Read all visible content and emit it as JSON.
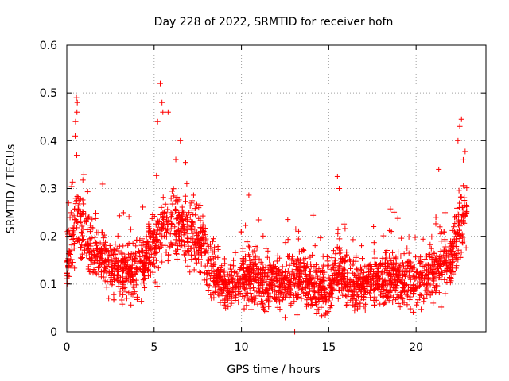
{
  "chart_data": {
    "type": "scatter",
    "title": "Day 228 of 2022, SRMTID for receiver hofn",
    "xlabel": "GPS time / hours",
    "ylabel": "SRMTID / TECUs",
    "xlim": [
      0,
      24
    ],
    "ylim": [
      0,
      0.6
    ],
    "x_ticks": [
      0,
      5,
      10,
      15,
      20
    ],
    "x_tick_labels": [
      "0",
      "5",
      "10",
      "15",
      "20"
    ],
    "y_ticks": [
      0,
      0.1,
      0.2,
      0.3,
      0.4,
      0.5,
      0.6
    ],
    "y_tick_labels": [
      "0",
      "0.1",
      "0.2",
      "0.3",
      "0.4",
      "0.5",
      "0.6"
    ],
    "grid": true,
    "marker": "plus",
    "color": "#ff0000",
    "outlier_points": [
      {
        "x": 0.55,
        "y": 0.49
      },
      {
        "x": 0.6,
        "y": 0.48
      },
      {
        "x": 0.58,
        "y": 0.46
      },
      {
        "x": 0.5,
        "y": 0.44
      },
      {
        "x": 0.48,
        "y": 0.41
      },
      {
        "x": 5.35,
        "y": 0.52
      },
      {
        "x": 5.45,
        "y": 0.48
      },
      {
        "x": 5.5,
        "y": 0.46
      },
      {
        "x": 5.2,
        "y": 0.44
      },
      {
        "x": 5.8,
        "y": 0.46
      },
      {
        "x": 6.5,
        "y": 0.4
      },
      {
        "x": 22.6,
        "y": 0.445
      },
      {
        "x": 22.5,
        "y": 0.43
      },
      {
        "x": 22.4,
        "y": 0.4
      },
      {
        "x": 22.7,
        "y": 0.36
      },
      {
        "x": 15.5,
        "y": 0.325
      },
      {
        "x": 15.6,
        "y": 0.3
      },
      {
        "x": 21.3,
        "y": 0.34
      },
      {
        "x": 12.5,
        "y": 0.03
      },
      {
        "x": 14.8,
        "y": 0.035
      },
      {
        "x": 13.05,
        "y": 0.0
      }
    ],
    "envelope": [
      {
        "x": 0.0,
        "y": 0.15
      },
      {
        "x": 0.3,
        "y": 0.2
      },
      {
        "x": 0.6,
        "y": 0.23
      },
      {
        "x": 1.0,
        "y": 0.2
      },
      {
        "x": 1.5,
        "y": 0.18
      },
      {
        "x": 2.0,
        "y": 0.16
      },
      {
        "x": 2.5,
        "y": 0.14
      },
      {
        "x": 3.0,
        "y": 0.12
      },
      {
        "x": 3.5,
        "y": 0.12
      },
      {
        "x": 4.0,
        "y": 0.13
      },
      {
        "x": 4.5,
        "y": 0.15
      },
      {
        "x": 5.0,
        "y": 0.18
      },
      {
        "x": 5.5,
        "y": 0.22
      },
      {
        "x": 6.0,
        "y": 0.23
      },
      {
        "x": 6.5,
        "y": 0.22
      },
      {
        "x": 7.0,
        "y": 0.21
      },
      {
        "x": 7.5,
        "y": 0.19
      },
      {
        "x": 8.0,
        "y": 0.16
      },
      {
        "x": 8.5,
        "y": 0.12
      },
      {
        "x": 9.0,
        "y": 0.1
      },
      {
        "x": 9.5,
        "y": 0.09
      },
      {
        "x": 10.0,
        "y": 0.11
      },
      {
        "x": 10.5,
        "y": 0.12
      },
      {
        "x": 11.0,
        "y": 0.11
      },
      {
        "x": 11.5,
        "y": 0.1
      },
      {
        "x": 12.0,
        "y": 0.1
      },
      {
        "x": 12.5,
        "y": 0.1
      },
      {
        "x": 13.0,
        "y": 0.11
      },
      {
        "x": 13.5,
        "y": 0.12
      },
      {
        "x": 14.0,
        "y": 0.1
      },
      {
        "x": 14.5,
        "y": 0.09
      },
      {
        "x": 15.0,
        "y": 0.09
      },
      {
        "x": 15.5,
        "y": 0.14
      },
      {
        "x": 16.0,
        "y": 0.1
      },
      {
        "x": 16.5,
        "y": 0.1
      },
      {
        "x": 17.0,
        "y": 0.1
      },
      {
        "x": 17.5,
        "y": 0.11
      },
      {
        "x": 18.0,
        "y": 0.1
      },
      {
        "x": 18.5,
        "y": 0.11
      },
      {
        "x": 19.0,
        "y": 0.11
      },
      {
        "x": 19.5,
        "y": 0.11
      },
      {
        "x": 20.0,
        "y": 0.11
      },
      {
        "x": 20.5,
        "y": 0.11
      },
      {
        "x": 21.0,
        "y": 0.12
      },
      {
        "x": 21.5,
        "y": 0.14
      },
      {
        "x": 22.0,
        "y": 0.15
      },
      {
        "x": 22.5,
        "y": 0.22
      },
      {
        "x": 22.9,
        "y": 0.25
      }
    ],
    "spread": 0.06,
    "x_extent": [
      0,
      22.9
    ],
    "approx_point_count": 2700
  }
}
